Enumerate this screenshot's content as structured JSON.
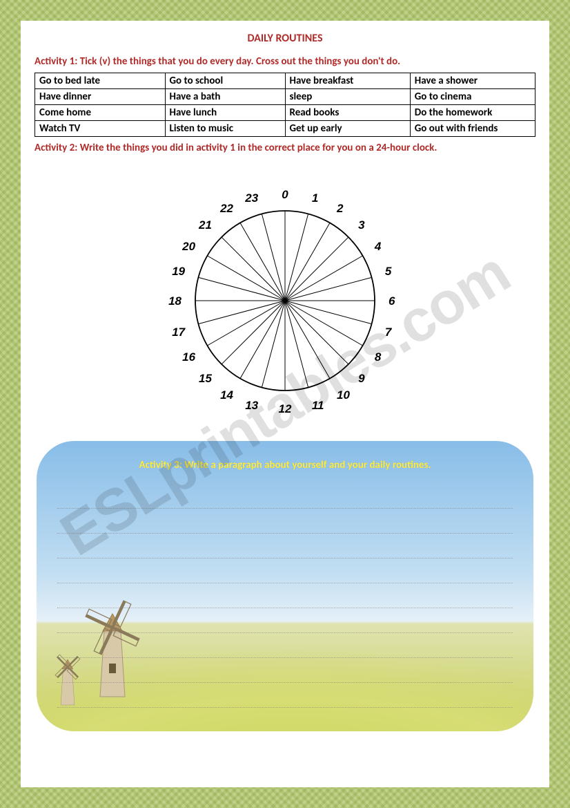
{
  "title": "DAILY ROUTINES",
  "activity1": {
    "label": "Activity 1: Tick (v) the things that you do every day. Cross out the things you don't do.",
    "rows": [
      [
        "Go to bed late",
        "Go  to school",
        "Have breakfast",
        "Have a shower"
      ],
      [
        "Have dinner",
        "Have a bath",
        "sleep",
        "Go to cinema"
      ],
      [
        "Come home",
        "Have lunch",
        "Read books",
        "Do the homework"
      ],
      [
        "Watch TV",
        "Listen to music",
        "Get up early",
        "Go out with friends"
      ]
    ],
    "col_widths_pct": [
      26,
      24,
      25,
      25
    ]
  },
  "activity2": {
    "label": "Activity 2: Write the things you did in activity 1 in the correct place for you on a 24-hour clock.",
    "clock": {
      "hours": [
        "0",
        "1",
        "2",
        "3",
        "4",
        "5",
        "6",
        "7",
        "8",
        "9",
        "10",
        "11",
        "12",
        "13",
        "14",
        "15",
        "16",
        "17",
        "18",
        "19",
        "20",
        "21",
        "22",
        "23"
      ],
      "radius": 130,
      "label_radius": 150,
      "stroke": "#000000",
      "stroke_width": 1,
      "font_family": "Comic Sans MS",
      "font_size": 17
    }
  },
  "activity3": {
    "label": "Activity 3: Write a paragraph about yourself and your daily routines.",
    "line_count": 9,
    "bg_sky_top": "#88bde8",
    "bg_sky_bottom": "#e6f0f8",
    "bg_ground": "#c7cf5e",
    "title_color": "#ffeb3b"
  },
  "watermark": "ESLprintables.com",
  "colors": {
    "accent": "#b02a28",
    "border": "#000000",
    "page_bg": "#ffffff",
    "pattern_light": "#e8efd0",
    "pattern_dark": "#d5e0b0"
  }
}
